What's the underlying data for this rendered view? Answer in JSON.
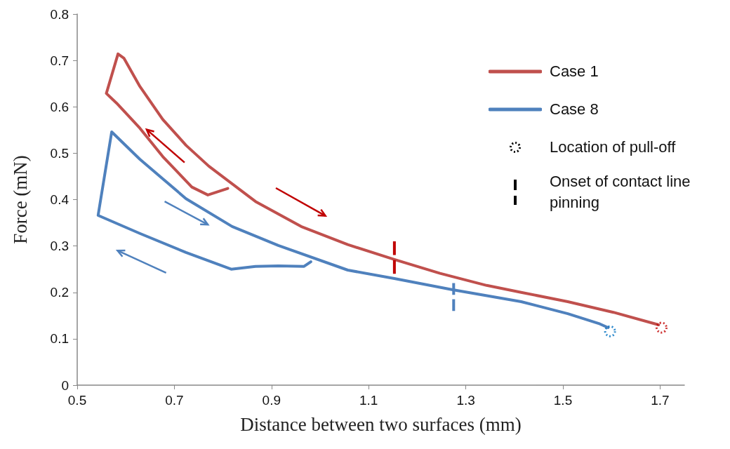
{
  "chart_data": {
    "type": "line",
    "xlabel": "Distance between two surfaces (mm)",
    "ylabel": "Force (mN)",
    "xlim": [
      0.5,
      1.75
    ],
    "xticks": [
      0.5,
      0.7,
      0.9,
      1.1,
      1.3,
      1.5,
      1.7
    ],
    "ylim": [
      0,
      0.8
    ],
    "yticks": [
      0,
      0.1,
      0.2,
      0.3,
      0.4,
      0.5,
      0.6,
      0.7,
      0.8
    ],
    "grid": false,
    "legend": "top right",
    "marker": "none",
    "line_style": "solid",
    "series": [
      {
        "name": "Case 1",
        "color": "#c0504d",
        "x": [
          0.81,
          0.769,
          0.736,
          0.676,
          0.629,
          0.581,
          0.56,
          0.584,
          0.596,
          0.629,
          0.676,
          0.724,
          0.771,
          0.867,
          0.961,
          1.057,
          1.153,
          1.247,
          1.343,
          1.414,
          1.51,
          1.604,
          1.697
        ],
        "values": [
          0.424,
          0.41,
          0.427,
          0.493,
          0.554,
          0.608,
          0.629,
          0.714,
          0.705,
          0.644,
          0.573,
          0.517,
          0.472,
          0.396,
          0.342,
          0.303,
          0.271,
          0.241,
          0.215,
          0.2,
          0.18,
          0.157,
          0.13
        ]
      },
      {
        "name": "Case 8",
        "color": "#4f81bd",
        "x": [
          0.981,
          0.967,
          0.914,
          0.867,
          0.817,
          0.724,
          0.629,
          0.543,
          0.571,
          0.629,
          0.724,
          0.819,
          0.914,
          1.057,
          1.153,
          1.271,
          1.414,
          1.51,
          1.576,
          1.593
        ],
        "values": [
          0.266,
          0.256,
          0.257,
          0.256,
          0.25,
          0.286,
          0.327,
          0.366,
          0.546,
          0.487,
          0.402,
          0.342,
          0.301,
          0.248,
          0.23,
          0.206,
          0.18,
          0.154,
          0.132,
          0.124
        ]
      },
      {
        "type": "scatter",
        "marker": "circle",
        "color": "#0070c0",
        "x": [
          1.597
        ],
        "values": [
          0.116
        ]
      },
      {
        "type": "scatter",
        "marker": "circle",
        "color": "#c00000",
        "x": [
          1.703
        ],
        "values": [
          0.124
        ]
      },
      {
        "color": "#c00000",
        "line_style": "dashed",
        "x": [
          1.153,
          1.153
        ],
        "values": [
          0.24,
          0.31
        ]
      },
      {
        "color": "#4f81bd",
        "line_style": "dashed",
        "x": [
          1.275,
          1.275
        ],
        "values": [
          0.16,
          0.22
        ]
      }
    ],
    "annotations": [
      "Location of pull-off",
      "Onset of contact line pinning"
    ]
  }
}
